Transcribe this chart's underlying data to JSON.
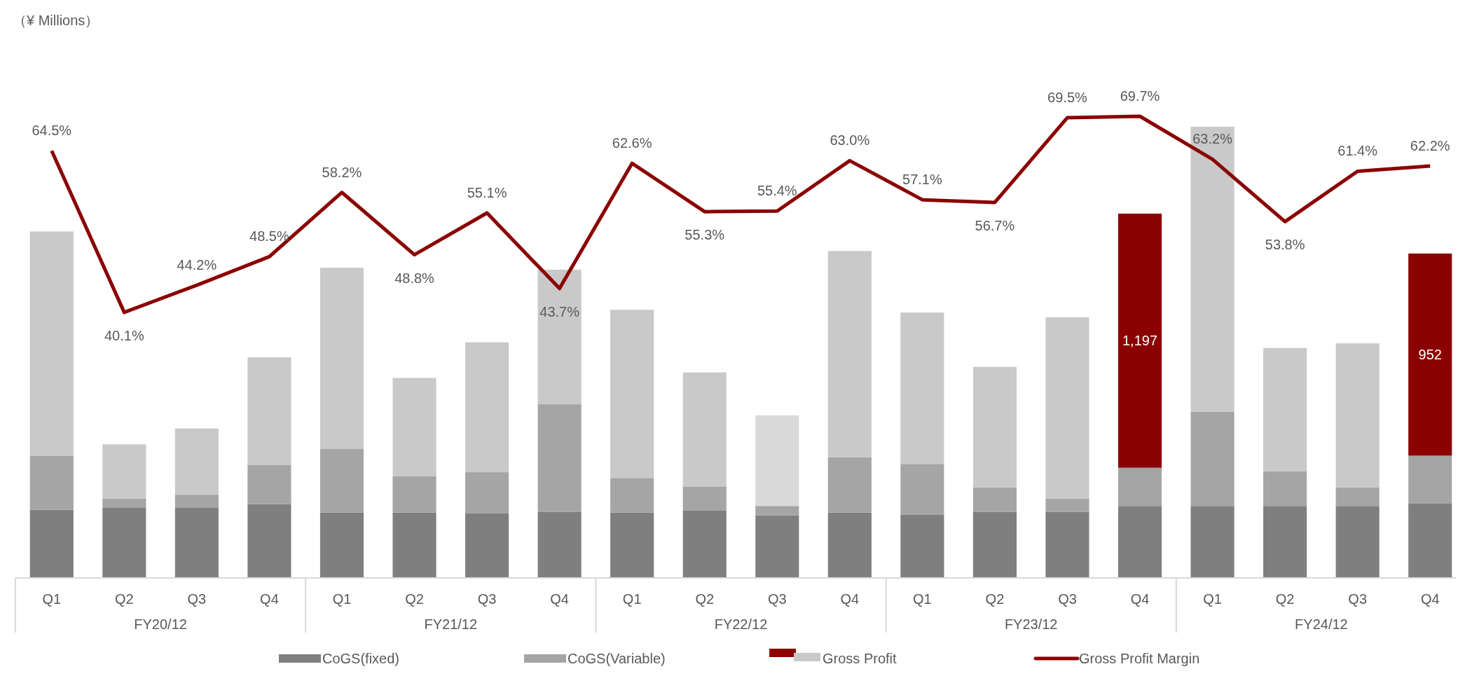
{
  "chart_data": {
    "type": "bar",
    "stacked": true,
    "legend": "bottom",
    "categories": [
      "Q1",
      "Q2",
      "Q3",
      "Q4",
      "Q1",
      "Q2",
      "Q3",
      "Q4",
      "Q1",
      "Q2",
      "Q3",
      "Q4",
      "Q1",
      "Q2",
      "Q3",
      "Q4",
      "Q1",
      "Q2",
      "Q3",
      "Q4"
    ],
    "annotations": [
      "（¥ Millions）",
      "FY20/12",
      "FY21/12",
      "FY22/12",
      "FY23/12",
      "FY24/12"
    ],
    "series": [
      {
        "name": "CoGS(fixed)",
        "color": "#7f7f7f",
        "values": [
          321,
          330,
          330,
          348,
          308,
          308,
          304,
          312,
          308,
          317,
          295,
          308,
          299,
          312,
          312,
          339,
          339,
          339,
          339,
          352
        ]
      },
      {
        "name": "CoGS(Variable)",
        "color": "#a5a5a5",
        "values": [
          255,
          44,
          62,
          185,
          299,
          172,
          194,
          506,
          163,
          114,
          44,
          260,
          238,
          114,
          62,
          180,
          444,
          163,
          88,
          224
        ]
      },
      {
        "name": "Gross Profit",
        "color": "#c9c9c9",
        "colors": [
          "#c9c9c9",
          "#c9c9c9",
          "#c9c9c9",
          "#c9c9c9",
          "#c9c9c9",
          "#c9c9c9",
          "#c9c9c9",
          "#c9c9c9",
          "#c9c9c9",
          "#c9c9c9",
          "#d9d9d9",
          "#c9c9c9",
          "#c9c9c9",
          "#c9c9c9",
          "#c9c9c9",
          "#8b0000",
          "#c9c9c9",
          "#c9c9c9",
          "#c9c9c9",
          "#8b0000"
        ],
        "values": [
          1056,
          255,
          312,
          506,
          854,
          462,
          612,
          634,
          792,
          537,
          427,
          972,
          713,
          568,
          854,
          1197,
          1342,
          581,
          678,
          952
        ],
        "value_labels": [
          null,
          null,
          null,
          null,
          null,
          null,
          null,
          null,
          null,
          null,
          null,
          null,
          null,
          null,
          null,
          "1,197",
          null,
          null,
          null,
          "952"
        ]
      },
      {
        "name": "Gross Profit Margin",
        "type": "line",
        "axis": "y2",
        "color": "#8b0000",
        "values": [
          64.5,
          40.1,
          44.2,
          48.5,
          58.2,
          48.8,
          55.1,
          43.7,
          62.6,
          55.3,
          55.4,
          63.0,
          57.1,
          56.7,
          69.5,
          69.7,
          63.2,
          53.8,
          61.4,
          62.2
        ],
        "value_labels": [
          "64.5%",
          "40.1%",
          "44.2%",
          "48.5%",
          "58.2%",
          "48.8%",
          "55.1%",
          "43.7%",
          "62.6%",
          "55.3%",
          "55.4%",
          "63.0%",
          "57.1%",
          "56.7%",
          "69.5%",
          "69.7%",
          "63.2%",
          "53.8%",
          "61.4%",
          "62.2%"
        ]
      }
    ]
  }
}
